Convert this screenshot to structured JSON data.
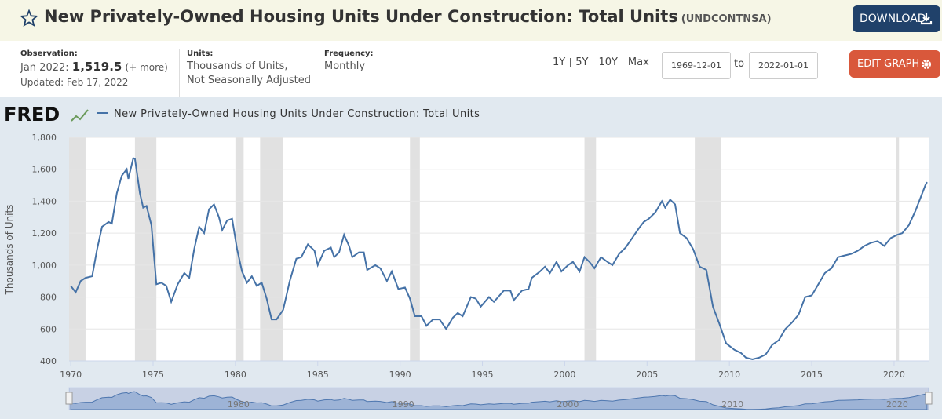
{
  "header": {
    "title": "New Privately-Owned Housing Units Under Construction: Total Units",
    "code": "(UNDCONTNSA)",
    "download": "DOWNLOAD",
    "observation_label": "Observation:",
    "observation_date": "Jan 2022:",
    "observation_value": "1,519.5",
    "more": "(+ more)",
    "updated": "Updated: Feb 17, 2022",
    "units_label": "Units:",
    "units_line1": "Thousands of Units,",
    "units_line2": "Not Seasonally Adjusted",
    "frequency_label": "Frequency:",
    "frequency": "Monthly",
    "ranges": [
      "1Y",
      "5Y",
      "10Y",
      "Max"
    ],
    "start_date": "1969-12-01",
    "to": "to",
    "end_date": "2022-01-01",
    "edit_graph": "EDIT GRAPH"
  },
  "chart_data": {
    "type": "line",
    "logo": "FRED",
    "ylabel": "Thousands of Units",
    "grid": true,
    "xlim": [
      1969.9,
      2022.1
    ],
    "xticks": [
      1970,
      1975,
      1980,
      1985,
      1990,
      1995,
      2000,
      2005,
      2010,
      2015,
      2020
    ],
    "ylim": [
      400,
      1800
    ],
    "yticks": [
      400,
      600,
      800,
      {
        "value": 1000,
        "label": "1,000"
      },
      {
        "value": 1200,
        "label": "1,200"
      },
      {
        "value": 1400,
        "label": "1,400"
      },
      {
        "value": 1600,
        "label": "1,600"
      },
      {
        "value": 1800,
        "label": "1,800"
      }
    ],
    "recessions": [
      [
        1969.9,
        1970.9
      ],
      [
        1973.9,
        1975.2
      ],
      [
        1980.0,
        1980.5
      ],
      [
        1981.5,
        1982.9
      ],
      [
        1990.6,
        1991.2
      ],
      [
        2001.2,
        2001.9
      ],
      [
        2007.9,
        2009.5
      ],
      [
        2020.1,
        2020.3
      ]
    ],
    "navigator_labels": [
      "1980",
      "1990",
      "2000",
      "2010",
      "2020"
    ],
    "x": [
      1970.0,
      1970.3,
      1970.6,
      1970.9,
      1971.3,
      1971.6,
      1971.9,
      1972.3,
      1972.5,
      1972.8,
      1973.1,
      1973.4,
      1973.5,
      1973.8,
      1973.9,
      1974.2,
      1974.4,
      1974.6,
      1974.9,
      1975.2,
      1975.5,
      1975.8,
      1976.1,
      1976.5,
      1976.9,
      1977.2,
      1977.5,
      1977.8,
      1978.1,
      1978.4,
      1978.7,
      1979.0,
      1979.2,
      1979.5,
      1979.8,
      1980.1,
      1980.4,
      1980.7,
      1981.0,
      1981.3,
      1981.6,
      1981.9,
      1982.2,
      1982.5,
      1982.9,
      1983.3,
      1983.7,
      1984.0,
      1984.4,
      1984.8,
      1985.0,
      1985.4,
      1985.8,
      1986.0,
      1986.3,
      1986.6,
      1986.9,
      1987.1,
      1987.5,
      1987.8,
      1988.0,
      1988.5,
      1988.8,
      1989.2,
      1989.5,
      1989.9,
      1990.3,
      1990.6,
      1990.9,
      1991.3,
      1991.6,
      1992.0,
      1992.4,
      1992.8,
      1993.2,
      1993.5,
      1993.8,
      1994.3,
      1994.6,
      1994.9,
      1995.4,
      1995.7,
      1996.3,
      1996.7,
      1996.9,
      1997.4,
      1997.8,
      1998.0,
      1998.5,
      1998.8,
      1999.1,
      1999.5,
      1999.8,
      2000.2,
      2000.5,
      2000.9,
      2001.2,
      2001.5,
      2001.8,
      2002.2,
      2002.6,
      2002.9,
      2003.3,
      2003.7,
      2004.1,
      2004.5,
      2004.8,
      2005.1,
      2005.5,
      2005.9,
      2006.1,
      2006.4,
      2006.7,
      2007.0,
      2007.4,
      2007.8,
      2008.2,
      2008.6,
      2009.0,
      2009.4,
      2009.8,
      2010.3,
      2010.7,
      2011.0,
      2011.4,
      2011.8,
      2012.2,
      2012.6,
      2013.0,
      2013.4,
      2013.8,
      2014.2,
      2014.6,
      2015.0,
      2015.4,
      2015.8,
      2016.2,
      2016.6,
      2017.0,
      2017.4,
      2017.8,
      2018.2,
      2018.6,
      2019.0,
      2019.4,
      2019.8,
      2020.2,
      2020.5,
      2020.9,
      2021.3,
      2021.6,
      2021.9,
      2022.0
    ],
    "series": [
      {
        "name": "New Privately-Owned Housing Units Under Construction: Total Units",
        "color": "#4572a7",
        "values": [
          870,
          830,
          900,
          920,
          930,
          1100,
          1240,
          1270,
          1260,
          1450,
          1560,
          1600,
          1540,
          1670,
          1665,
          1450,
          1360,
          1370,
          1250,
          880,
          890,
          870,
          770,
          880,
          950,
          920,
          1100,
          1240,
          1200,
          1350,
          1380,
          1300,
          1220,
          1280,
          1290,
          1100,
          960,
          890,
          930,
          870,
          890,
          790,
          660,
          660,
          720,
          900,
          1040,
          1050,
          1130,
          1090,
          1000,
          1090,
          1110,
          1050,
          1080,
          1190,
          1120,
          1050,
          1080,
          1080,
          970,
          1000,
          980,
          900,
          960,
          850,
          860,
          790,
          680,
          680,
          620,
          660,
          660,
          600,
          670,
          700,
          680,
          800,
          790,
          740,
          800,
          770,
          840,
          840,
          780,
          840,
          850,
          920,
          960,
          990,
          950,
          1020,
          960,
          1000,
          1020,
          960,
          1050,
          1020,
          980,
          1050,
          1020,
          1000,
          1070,
          1110,
          1170,
          1230,
          1270,
          1290,
          1330,
          1400,
          1360,
          1410,
          1380,
          1200,
          1170,
          1100,
          990,
          970,
          740,
          630,
          510,
          470,
          450,
          420,
          410,
          420,
          440,
          500,
          530,
          600,
          640,
          690,
          800,
          810,
          880,
          950,
          980,
          1050,
          1060,
          1070,
          1090,
          1120,
          1140,
          1150,
          1120,
          1170,
          1190,
          1200,
          1250,
          1340,
          1420,
          1500,
          1519.5
        ]
      }
    ]
  }
}
